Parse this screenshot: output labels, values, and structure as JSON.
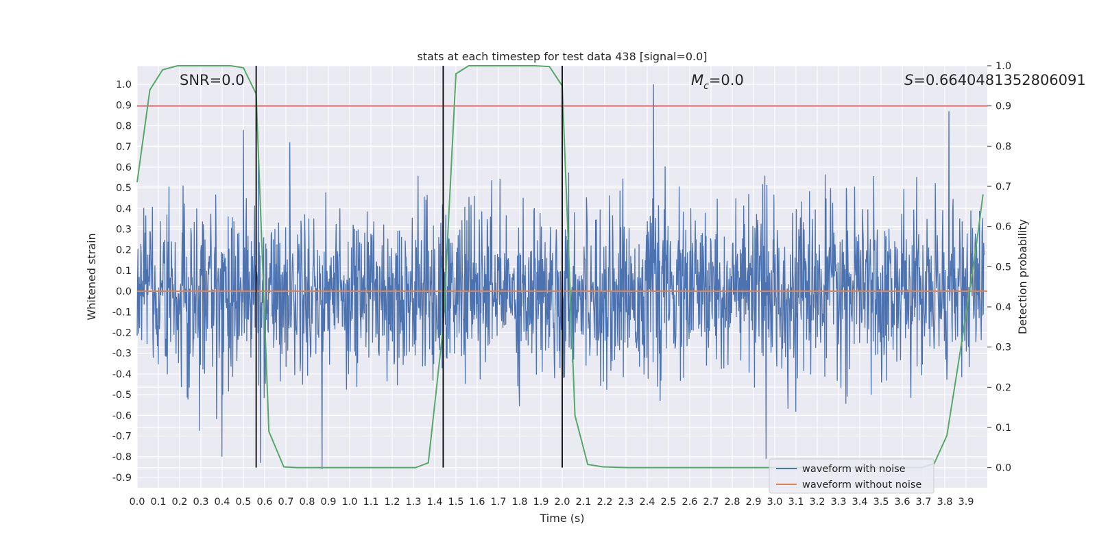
{
  "chart_data": {
    "type": "line",
    "title": "stats at each timestep for test data 438 [signal=0.0]",
    "xlabel": "Time (s)",
    "ylabel": "Whitened strain",
    "y2label": "Detection probability",
    "xlim": [
      0.0,
      4.0
    ],
    "ylim": [
      -0.95,
      1.09
    ],
    "y2lim": [
      -0.05,
      1.0
    ],
    "x_ticks": [
      0.0,
      0.1,
      0.2,
      0.3,
      0.4,
      0.5,
      0.6,
      0.7,
      0.8,
      0.9,
      1.0,
      1.1,
      1.2,
      1.3,
      1.4,
      1.5,
      1.6,
      1.7,
      1.8,
      1.9,
      2.0,
      2.1,
      2.2,
      2.3,
      2.4,
      2.5,
      2.6,
      2.7,
      2.8,
      2.9,
      3.0,
      3.1,
      3.2,
      3.3,
      3.4,
      3.5,
      3.6,
      3.7,
      3.8,
      3.9
    ],
    "x_tick_labels": [
      "0.0",
      "0.1",
      "0.2",
      "0.3",
      "0.4",
      "0.5",
      "0.6",
      "0.7",
      "0.8",
      "0.9",
      "1.0",
      "1.1",
      "1.2",
      "1.3",
      "1.4",
      "1.5",
      "1.6",
      "1.7",
      "1.8",
      "1.9",
      "2.0",
      "2.1",
      "2.2",
      "2.3",
      "2.4",
      "2.5",
      "2.6",
      "2.7",
      "2.8",
      "2.9",
      "3.0",
      "3.1",
      "3.2",
      "3.3",
      "3.4",
      "3.5",
      "3.6",
      "3.7",
      "3.8",
      "3.9"
    ],
    "y_ticks": [
      1.0,
      0.9,
      0.8,
      0.7,
      0.6,
      0.5,
      0.4,
      0.3,
      0.2,
      0.1,
      0.0,
      -0.1,
      -0.2,
      -0.3,
      -0.4,
      -0.5,
      -0.6,
      -0.7,
      -0.8,
      -0.9
    ],
    "y_tick_labels": [
      "1.0",
      "0.9",
      "0.8",
      "0.7",
      "0.6",
      "0.5",
      "0.4",
      "0.3",
      "0.2",
      "0.1",
      "0.0",
      "-0.1",
      "-0.2",
      "-0.3",
      "-0.4",
      "-0.5",
      "-0.6",
      "-0.7",
      "-0.8",
      "-0.9"
    ],
    "y2_ticks": [
      1.0,
      0.9,
      0.8,
      0.7,
      0.6,
      0.5,
      0.4,
      0.3,
      0.2,
      0.1,
      0.0
    ],
    "y2_tick_labels": [
      "1.0",
      "0.9",
      "0.8",
      "0.7",
      "0.6",
      "0.5",
      "0.4",
      "0.3",
      "0.2",
      "0.1",
      "0.0"
    ],
    "grid": true,
    "annotations": {
      "snr": "SNR=0.0",
      "mc_symbol": "M",
      "mc_subscript": "c",
      "mc_value": "=0.0",
      "s_symbol": "S",
      "s_value": "=0.6640481352806091"
    },
    "series": [
      {
        "name": "waveform with noise",
        "color": "#4c72b0",
        "axis": "left",
        "description": "dense noisy strain time series, approx. 4096 samples, amplitude mostly within -0.5..0.5",
        "approx_range": [
          -0.86,
          1.0
        ],
        "peaks": [
          {
            "x": 2.43,
            "y": 1.0
          },
          {
            "x": 3.82,
            "y": 0.87
          },
          {
            "x": 0.5,
            "y": 0.78
          },
          {
            "x": 0.87,
            "y": -0.86
          },
          {
            "x": 2.96,
            "y": -0.81
          },
          {
            "x": 0.4,
            "y": -0.8
          },
          {
            "x": 0.58,
            "y": -0.83
          }
        ]
      },
      {
        "name": "waveform without noise",
        "color": "#dd8452",
        "axis": "left",
        "constant": 0.0
      },
      {
        "name": "detection probability",
        "color": "#55a868",
        "axis": "right",
        "x": [
          0.0,
          0.06,
          0.12,
          0.19,
          0.25,
          0.31,
          0.37,
          0.44,
          0.5,
          0.56,
          0.62,
          0.69,
          0.75,
          0.81,
          0.87,
          0.94,
          1.0,
          1.06,
          1.12,
          1.19,
          1.25,
          1.31,
          1.37,
          1.44,
          1.5,
          1.56,
          1.62,
          1.69,
          1.75,
          1.81,
          1.87,
          1.94,
          2.0,
          2.06,
          2.12,
          2.19,
          2.25,
          2.31,
          2.37,
          2.44,
          2.5,
          2.56,
          2.62,
          2.69,
          2.75,
          2.81,
          2.87,
          2.94,
          3.0,
          3.06,
          3.12,
          3.19,
          3.25,
          3.31,
          3.37,
          3.44,
          3.5,
          3.56,
          3.62,
          3.69,
          3.75,
          3.81,
          3.87,
          3.94,
          3.98
        ],
        "y": [
          0.71,
          0.94,
          0.99,
          1.0,
          1.0,
          1.0,
          1.0,
          1.0,
          0.995,
          0.93,
          0.09,
          0.002,
          0.0,
          0.0,
          0.0,
          0.0,
          0.0,
          0.0,
          0.0,
          0.0,
          0.0,
          0.0,
          0.012,
          0.35,
          0.98,
          1.0,
          1.0,
          1.0,
          1.0,
          1.0,
          1.0,
          0.998,
          0.95,
          0.13,
          0.008,
          0.002,
          0.001,
          0.0,
          0.0,
          0.0,
          0.0,
          0.0,
          0.0,
          0.0,
          0.0,
          0.0,
          0.0,
          0.0,
          0.0,
          0.0,
          0.0,
          0.0,
          0.0,
          0.0,
          0.0,
          0.0,
          0.0,
          0.0,
          0.0,
          0.0,
          0.01,
          0.08,
          0.28,
          0.52,
          0.68
        ]
      }
    ],
    "threshold_line": {
      "axis": "right",
      "value": 0.9,
      "color": "#c44e52"
    },
    "vertical_markers": [
      0.56,
      1.44,
      2.0
    ],
    "vertical_marker_color": "#000000",
    "legend": {
      "placement": "lower-right",
      "entries": [
        {
          "label": "waveform with noise",
          "color": "#4c72b0"
        },
        {
          "label": "waveform without noise",
          "color": "#dd8452"
        }
      ]
    }
  },
  "colors": {
    "axes_background": "#eaeaf2",
    "grid": "#ffffff",
    "text": "#262626"
  }
}
